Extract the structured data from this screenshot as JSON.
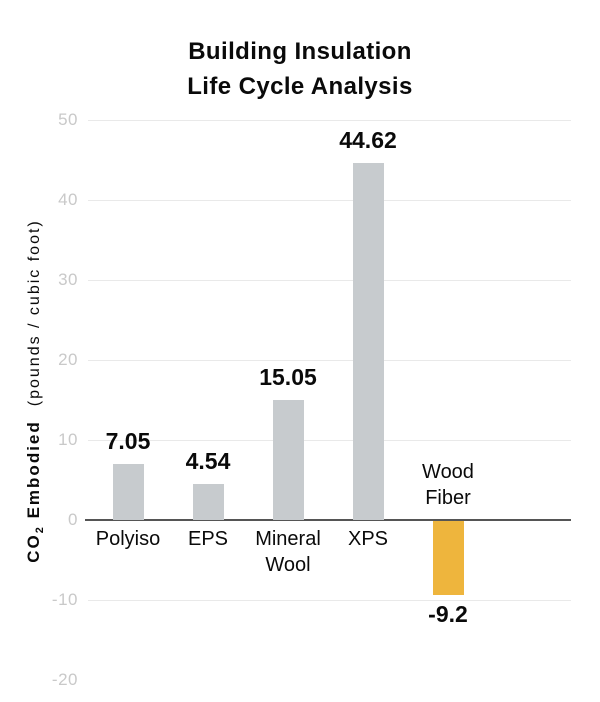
{
  "title": {
    "line1": "Building Insulation",
    "line2": "Life Cycle Analysis"
  },
  "y_axis": {
    "label_bold_prefix": "CO",
    "label_bold_sub": "2",
    "label_bold_suffix": " Embodied",
    "label_units": "(pounds / cubic foot)"
  },
  "chart_data": {
    "type": "bar",
    "title": "Building Insulation Life Cycle Analysis",
    "xlabel": "",
    "ylabel": "CO2 Embodied (pounds / cubic foot)",
    "ylim": [
      -20,
      50
    ],
    "yticks": [
      50,
      40,
      30,
      20,
      10,
      0,
      -10,
      -20
    ],
    "gridlines_at": [
      50,
      40,
      30,
      20,
      10,
      -10
    ],
    "grid": true,
    "legend": false,
    "categories": [
      "Polyiso",
      "EPS",
      "Mineral Wool",
      "XPS",
      "Wood Fiber"
    ],
    "values": [
      7.05,
      4.54,
      15.05,
      44.62,
      -9.2
    ],
    "points": [
      {
        "category": "Polyiso",
        "label_lines": [
          "Polyiso"
        ],
        "value": 7.05,
        "value_label": "7.05",
        "color": "#c7cbce",
        "label_position": "below"
      },
      {
        "category": "EPS",
        "label_lines": [
          "EPS"
        ],
        "value": 4.54,
        "value_label": "4.54",
        "color": "#c7cbce",
        "label_position": "below"
      },
      {
        "category": "Mineral Wool",
        "label_lines": [
          "Mineral",
          "Wool"
        ],
        "value": 15.05,
        "value_label": "15.05",
        "color": "#c7cbce",
        "label_position": "below"
      },
      {
        "category": "XPS",
        "label_lines": [
          "XPS"
        ],
        "value": 44.62,
        "value_label": "44.62",
        "color": "#c7cbce",
        "label_position": "below"
      },
      {
        "category": "Wood Fiber",
        "label_lines": [
          "Wood",
          "Fiber"
        ],
        "value": -9.2,
        "value_label": "-9.2",
        "color": "#eeb53d",
        "label_position": "above"
      }
    ],
    "colors": {
      "bar_gray": "#c7cbce",
      "bar_highlight": "#eeb53d",
      "tick_label": "#c9c9c9",
      "gridline": "#e9e9e9",
      "zero_line": "#555555",
      "text": "#0a0a0a"
    }
  }
}
